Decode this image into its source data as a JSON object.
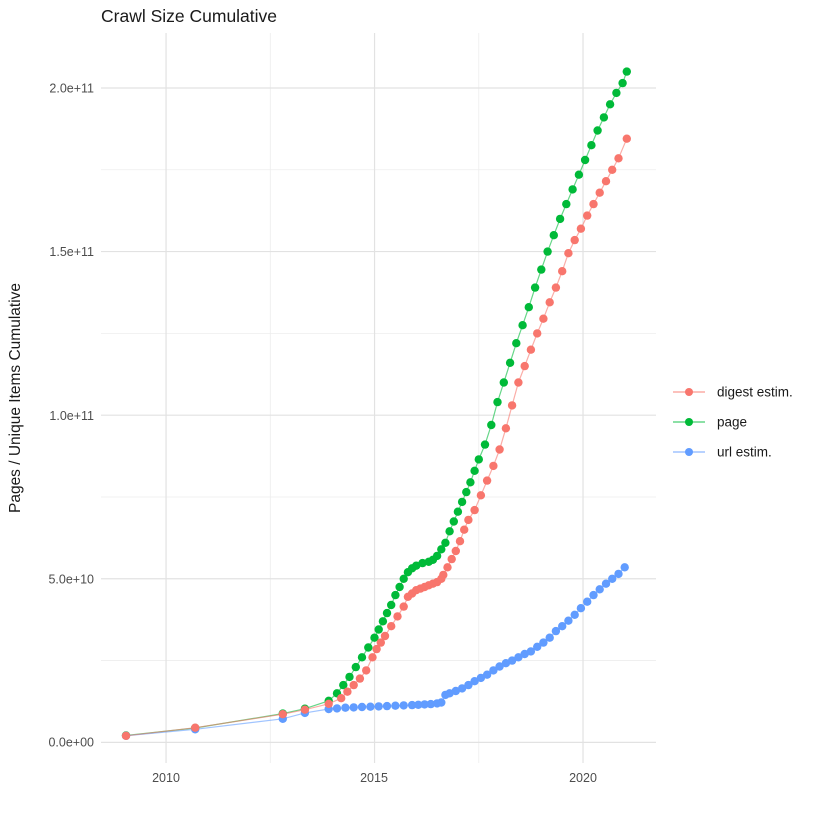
{
  "chart_data": {
    "type": "line",
    "title": "Crawl Size Cumulative",
    "xlabel": "",
    "ylabel": "Pages / Unique Items Cumulative",
    "grid": true,
    "legend_position": "right",
    "xlim": [
      2008.44,
      2021.75
    ],
    "ylim": [
      -6300000000.0,
      216800000000.0
    ],
    "x_ticks": [
      2010,
      2015,
      2020
    ],
    "x_tick_labels": [
      "2010",
      "2015",
      "2020"
    ],
    "x_minor_ticks": [
      2012.5,
      2017.5
    ],
    "y_ticks": [
      0,
      50000000000.0,
      100000000000.0,
      150000000000.0,
      200000000000.0
    ],
    "y_tick_labels": [
      "0.0e+00",
      "5.0e+10",
      "1.0e+11",
      "1.5e+11",
      "2.0e+11"
    ],
    "y_minor_ticks": [
      25000000000.0,
      75000000000.0,
      125000000000.0,
      175000000000.0
    ],
    "colors": {
      "digest": "#F8766D",
      "page": "#00BA38",
      "url": "#619CFF",
      "grid_major": "#E2E2E2",
      "grid_minor": "#EDEDED"
    },
    "legend_order": [
      "digest estim.",
      "page",
      "url estim."
    ],
    "series": [
      {
        "name": "page",
        "color": "#00BA38",
        "points": [
          [
            2009.04,
            2100000000.0
          ],
          [
            2010.7,
            4400000000.0
          ],
          [
            2012.8,
            8800000000.0
          ],
          [
            2013.33,
            10300000000.0
          ],
          [
            2013.9,
            12700000000.0
          ],
          [
            2014.1,
            15000000000.0
          ],
          [
            2014.25,
            17500000000.0
          ],
          [
            2014.4,
            20000000000.0
          ],
          [
            2014.55,
            23000000000.0
          ],
          [
            2014.7,
            26000000000.0
          ],
          [
            2014.85,
            29000000000.0
          ],
          [
            2015.0,
            32000000000.0
          ],
          [
            2015.1,
            34500000000.0
          ],
          [
            2015.2,
            37000000000.0
          ],
          [
            2015.3,
            39500000000.0
          ],
          [
            2015.4,
            42000000000.0
          ],
          [
            2015.5,
            45000000000.0
          ],
          [
            2015.6,
            47500000000.0
          ],
          [
            2015.7,
            50000000000.0
          ],
          [
            2015.8,
            52000000000.0
          ],
          [
            2015.9,
            53200000000.0
          ],
          [
            2016.0,
            54000000000.0
          ],
          [
            2016.15,
            54800000000.0
          ],
          [
            2016.3,
            55200000000.0
          ],
          [
            2016.4,
            55800000000.0
          ],
          [
            2016.5,
            57000000000.0
          ],
          [
            2016.6,
            59000000000.0
          ],
          [
            2016.7,
            61000000000.0
          ],
          [
            2016.8,
            64500000000.0
          ],
          [
            2016.9,
            67500000000.0
          ],
          [
            2017.0,
            70500000000.0
          ],
          [
            2017.1,
            73500000000.0
          ],
          [
            2017.2,
            76500000000.0
          ],
          [
            2017.3,
            79500000000.0
          ],
          [
            2017.4,
            83000000000.0
          ],
          [
            2017.5,
            86500000000.0
          ],
          [
            2017.65,
            91000000000.0
          ],
          [
            2017.8,
            97000000000.0
          ],
          [
            2017.95,
            104000000000.0
          ],
          [
            2018.1,
            110000000000.0
          ],
          [
            2018.25,
            116000000000.0
          ],
          [
            2018.4,
            122000000000.0
          ],
          [
            2018.55,
            127500000000.0
          ],
          [
            2018.7,
            133000000000.0
          ],
          [
            2018.85,
            139000000000.0
          ],
          [
            2019.0,
            144500000000.0
          ],
          [
            2019.15,
            150000000000.0
          ],
          [
            2019.3,
            155000000000.0
          ],
          [
            2019.45,
            160000000000.0
          ],
          [
            2019.6,
            164500000000.0
          ],
          [
            2019.75,
            169000000000.0
          ],
          [
            2019.9,
            173500000000.0
          ],
          [
            2020.05,
            178000000000.0
          ],
          [
            2020.2,
            182500000000.0
          ],
          [
            2020.35,
            187000000000.0
          ],
          [
            2020.5,
            191000000000.0
          ],
          [
            2020.65,
            195000000000.0
          ],
          [
            2020.8,
            198500000000.0
          ],
          [
            2020.95,
            201500000000.0
          ],
          [
            2021.05,
            205000000000.0
          ]
        ]
      },
      {
        "name": "url estim.",
        "color": "#619CFF",
        "points": [
          [
            2009.04,
            2000000000.0
          ],
          [
            2010.7,
            4000000000.0
          ],
          [
            2012.8,
            7200000000.0
          ],
          [
            2013.33,
            9000000000.0
          ],
          [
            2013.9,
            10200000000.0
          ],
          [
            2014.1,
            10400000000.0
          ],
          [
            2014.3,
            10600000000.0
          ],
          [
            2014.5,
            10700000000.0
          ],
          [
            2014.7,
            10800000000.0
          ],
          [
            2014.9,
            10900000000.0
          ],
          [
            2015.1,
            11000000000.0
          ],
          [
            2015.3,
            11100000000.0
          ],
          [
            2015.5,
            11200000000.0
          ],
          [
            2015.7,
            11300000000.0
          ],
          [
            2015.9,
            11400000000.0
          ],
          [
            2016.05,
            11500000000.0
          ],
          [
            2016.2,
            11600000000.0
          ],
          [
            2016.35,
            11700000000.0
          ],
          [
            2016.5,
            11900000000.0
          ],
          [
            2016.6,
            12200000000.0
          ],
          [
            2016.7,
            14500000000.0
          ],
          [
            2016.8,
            15000000000.0
          ],
          [
            2016.95,
            15700000000.0
          ],
          [
            2017.1,
            16500000000.0
          ],
          [
            2017.25,
            17500000000.0
          ],
          [
            2017.4,
            18700000000.0
          ],
          [
            2017.55,
            19700000000.0
          ],
          [
            2017.7,
            20700000000.0
          ],
          [
            2017.85,
            22000000000.0
          ],
          [
            2018.0,
            23200000000.0
          ],
          [
            2018.15,
            24200000000.0
          ],
          [
            2018.3,
            25000000000.0
          ],
          [
            2018.45,
            26000000000.0
          ],
          [
            2018.6,
            27000000000.0
          ],
          [
            2018.75,
            27800000000.0
          ],
          [
            2018.9,
            29200000000.0
          ],
          [
            2019.05,
            30500000000.0
          ],
          [
            2019.2,
            32000000000.0
          ],
          [
            2019.35,
            34000000000.0
          ],
          [
            2019.5,
            35500000000.0
          ],
          [
            2019.65,
            37200000000.0
          ],
          [
            2019.8,
            39000000000.0
          ],
          [
            2019.95,
            41000000000.0
          ],
          [
            2020.1,
            43000000000.0
          ],
          [
            2020.25,
            45000000000.0
          ],
          [
            2020.4,
            46800000000.0
          ],
          [
            2020.55,
            48500000000.0
          ],
          [
            2020.7,
            50000000000.0
          ],
          [
            2020.85,
            51500000000.0
          ],
          [
            2021.0,
            53500000000.0
          ]
        ]
      },
      {
        "name": "digest estim.",
        "color": "#F8766D",
        "points": [
          [
            2009.04,
            2000000000.0
          ],
          [
            2010.7,
            4500000000.0
          ],
          [
            2012.8,
            8600000000.0
          ],
          [
            2013.33,
            10000000000.0
          ],
          [
            2013.9,
            11800000000.0
          ],
          [
            2014.2,
            13500000000.0
          ],
          [
            2014.35,
            15500000000.0
          ],
          [
            2014.5,
            17500000000.0
          ],
          [
            2014.65,
            19500000000.0
          ],
          [
            2014.8,
            22000000000.0
          ],
          [
            2014.95,
            26000000000.0
          ],
          [
            2015.05,
            28500000000.0
          ],
          [
            2015.15,
            30500000000.0
          ],
          [
            2015.25,
            32500000000.0
          ],
          [
            2015.4,
            35500000000.0
          ],
          [
            2015.55,
            38500000000.0
          ],
          [
            2015.7,
            41500000000.0
          ],
          [
            2015.8,
            44500000000.0
          ],
          [
            2015.9,
            45500000000.0
          ],
          [
            2016.0,
            46500000000.0
          ],
          [
            2016.1,
            47000000000.0
          ],
          [
            2016.2,
            47500000000.0
          ],
          [
            2016.3,
            48000000000.0
          ],
          [
            2016.4,
            48500000000.0
          ],
          [
            2016.5,
            49000000000.0
          ],
          [
            2016.6,
            50000000000.0
          ],
          [
            2016.65,
            51200000000.0
          ],
          [
            2016.75,
            53500000000.0
          ],
          [
            2016.85,
            56000000000.0
          ],
          [
            2016.95,
            58500000000.0
          ],
          [
            2017.05,
            61500000000.0
          ],
          [
            2017.15,
            65000000000.0
          ],
          [
            2017.25,
            68000000000.0
          ],
          [
            2017.4,
            71000000000.0
          ],
          [
            2017.55,
            75500000000.0
          ],
          [
            2017.7,
            80000000000.0
          ],
          [
            2017.85,
            84500000000.0
          ],
          [
            2018.0,
            89500000000.0
          ],
          [
            2018.15,
            96000000000.0
          ],
          [
            2018.3,
            103000000000.0
          ],
          [
            2018.45,
            110000000000.0
          ],
          [
            2018.6,
            115000000000.0
          ],
          [
            2018.75,
            120000000000.0
          ],
          [
            2018.9,
            125000000000.0
          ],
          [
            2019.05,
            129500000000.0
          ],
          [
            2019.2,
            134500000000.0
          ],
          [
            2019.35,
            139000000000.0
          ],
          [
            2019.5,
            144000000000.0
          ],
          [
            2019.65,
            149500000000.0
          ],
          [
            2019.8,
            153500000000.0
          ],
          [
            2019.95,
            157000000000.0
          ],
          [
            2020.1,
            161000000000.0
          ],
          [
            2020.25,
            164500000000.0
          ],
          [
            2020.4,
            168000000000.0
          ],
          [
            2020.55,
            171500000000.0
          ],
          [
            2020.7,
            175000000000.0
          ],
          [
            2020.85,
            178500000000.0
          ],
          [
            2021.05,
            184500000000.0
          ]
        ]
      }
    ]
  }
}
